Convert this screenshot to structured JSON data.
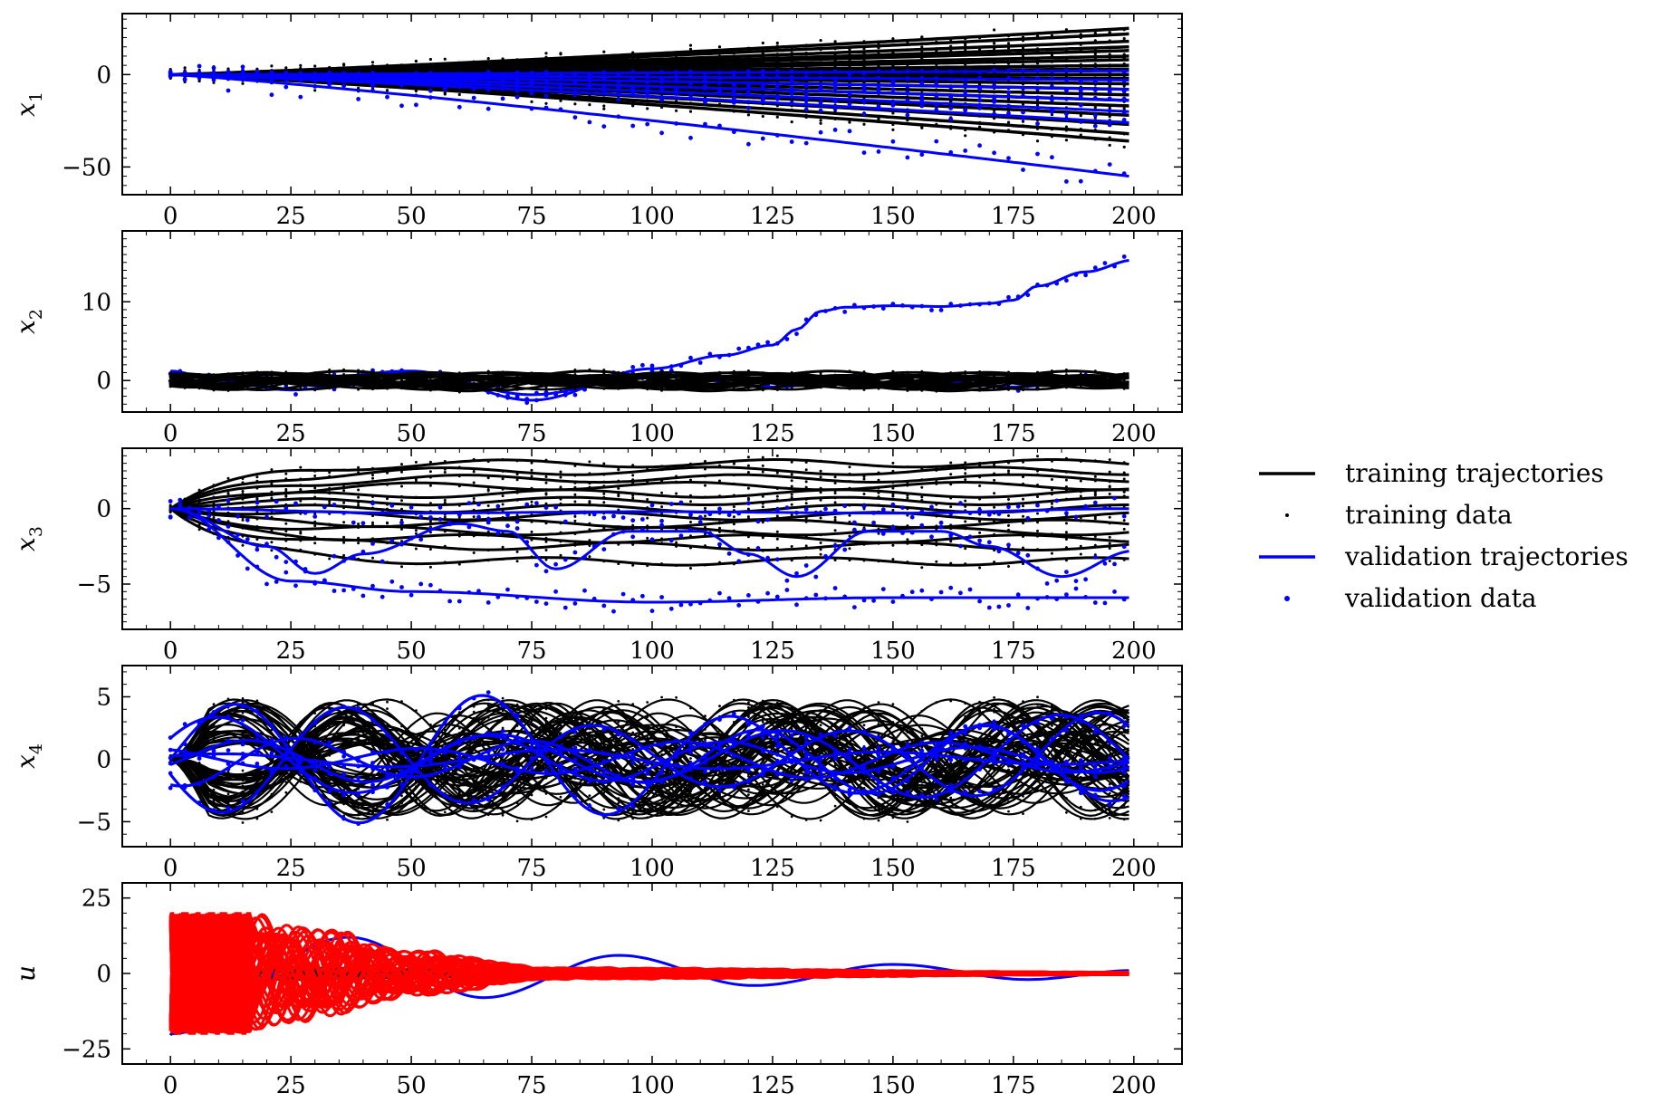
{
  "colors": {
    "training": "#000000",
    "validation": "#0000ff",
    "control": "#ff0000"
  },
  "legend": {
    "placement": "right",
    "items": [
      {
        "label": "training trajectories",
        "kind": "line",
        "color": "#000000"
      },
      {
        "label": "training data",
        "kind": "dot",
        "color": "#000000"
      },
      {
        "label": "validation trajectories",
        "kind": "line",
        "color": "#0000ff"
      },
      {
        "label": "validation data",
        "kind": "dot",
        "color": "#0000ff"
      }
    ]
  },
  "chart_data": [
    {
      "type": "line",
      "ylabel": "x",
      "ylabel_sub": "1",
      "xlim": [
        -10,
        210
      ],
      "ylim": [
        -65,
        33
      ],
      "xticks": [
        0,
        25,
        50,
        75,
        100,
        125,
        150,
        175,
        200
      ],
      "xtick_labels": [
        "0",
        "25",
        "50",
        "75",
        "100",
        "125",
        "150",
        "175",
        "200"
      ],
      "yticks": [
        0,
        -50
      ],
      "ytick_labels": [
        "0",
        "−50"
      ],
      "series": [
        {
          "group": "training",
          "x": [
            0,
            200
          ],
          "end_values": [
            25,
            22,
            18,
            15,
            13,
            10,
            8,
            5,
            3,
            0,
            -2,
            -5,
            -8,
            -11,
            -14,
            -17,
            -22,
            -27,
            -32,
            -36
          ]
        },
        {
          "group": "validation",
          "x": [
            0,
            200
          ],
          "end_values": [
            2,
            -3,
            -8,
            -14,
            -20,
            -26,
            -55
          ]
        }
      ]
    },
    {
      "type": "line",
      "ylabel": "x",
      "ylabel_sub": "2",
      "xlim": [
        -10,
        210
      ],
      "ylim": [
        -4,
        19
      ],
      "xticks": [
        0,
        25,
        50,
        75,
        100,
        125,
        150,
        175,
        200
      ],
      "xtick_labels": [
        "0",
        "25",
        "50",
        "75",
        "100",
        "125",
        "150",
        "175",
        "200"
      ],
      "yticks": [
        10,
        0
      ],
      "ytick_labels": [
        "10",
        "0"
      ],
      "series": [
        {
          "group": "validation",
          "x": [
            0,
            25,
            50,
            75,
            100,
            115,
            125,
            130,
            135,
            140,
            150,
            160,
            170,
            175,
            180,
            190,
            200
          ],
          "y": [
            0,
            0,
            1.2,
            -2.5,
            1.5,
            3.2,
            4.5,
            6.5,
            8.8,
            9.3,
            9.5,
            9.4,
            9.8,
            10.2,
            12.0,
            13.8,
            15.3
          ]
        },
        {
          "group": "validation",
          "x": [
            0,
            10,
            25,
            50,
            75,
            100,
            125,
            150,
            175,
            200
          ],
          "y": [
            1.2,
            0,
            -1.2,
            1.0,
            -1.8,
            0.8,
            -0.8,
            0.6,
            -0.8,
            0.8
          ]
        },
        {
          "group": "training",
          "x": [
            0,
            200
          ],
          "envelope": [
            -1.6,
            1.6
          ]
        }
      ]
    },
    {
      "type": "line",
      "ylabel": "x",
      "ylabel_sub": "3",
      "xlim": [
        -10,
        210
      ],
      "ylim": [
        -8,
        4
      ],
      "xticks": [
        0,
        25,
        50,
        75,
        100,
        125,
        150,
        175,
        200
      ],
      "xtick_labels": [
        "0",
        "25",
        "50",
        "75",
        "100",
        "125",
        "150",
        "175",
        "200"
      ],
      "yticks": [
        0,
        -5
      ],
      "ytick_labels": [
        "0",
        "−5"
      ],
      "series": [
        {
          "group": "training",
          "x": [
            0,
            200
          ],
          "levels": [
            3.0,
            2.5,
            2.0,
            1.5,
            1.0,
            0.5,
            0.0,
            -0.5,
            -1.0,
            -1.5,
            -2.0,
            -2.5,
            -3.5
          ]
        },
        {
          "group": "validation",
          "x": [
            0,
            25,
            50,
            100,
            150,
            200
          ],
          "y": [
            0,
            -4.8,
            -5.5,
            -6.2,
            -5.9,
            -5.9
          ]
        },
        {
          "group": "validation",
          "x": [
            0,
            20,
            30,
            40,
            60,
            70,
            80,
            95,
            110,
            120,
            130,
            145,
            160,
            170,
            185,
            200
          ],
          "y": [
            0,
            -2.5,
            -4.3,
            -3.0,
            -1.0,
            -1.5,
            -4.0,
            -1.5,
            -1.5,
            -3.0,
            -4.5,
            -1.5,
            -1.5,
            -2.5,
            -4.5,
            -2.8
          ]
        },
        {
          "group": "validation",
          "x": [
            0,
            50,
            100,
            150,
            200
          ],
          "y": [
            0,
            -0.3,
            -0.2,
            -0.3,
            0
          ]
        }
      ]
    },
    {
      "type": "line",
      "ylabel": "x",
      "ylabel_sub": "4",
      "xlim": [
        -10,
        210
      ],
      "ylim": [
        -7,
        7.5
      ],
      "xticks": [
        0,
        25,
        50,
        75,
        100,
        125,
        150,
        175,
        200
      ],
      "xtick_labels": [
        "0",
        "25",
        "50",
        "75",
        "100",
        "125",
        "150",
        "175",
        "200"
      ],
      "yticks": [
        5,
        0,
        -5
      ],
      "ytick_labels": [
        "5",
        "0",
        "−5"
      ],
      "series": [
        {
          "group": "training",
          "x": [
            0,
            200
          ],
          "envelope": [
            -5,
            5
          ],
          "oscillating": true
        },
        {
          "group": "validation",
          "x": [
            0,
            200
          ],
          "peak_amplitude": 6.3,
          "oscillating": true
        }
      ]
    },
    {
      "type": "line",
      "ylabel": "u",
      "ylabel_sub": "",
      "xlim": [
        -10,
        210
      ],
      "ylim": [
        -30,
        30
      ],
      "xticks": [
        0,
        25,
        50,
        75,
        100,
        125,
        150,
        175,
        200
      ],
      "xtick_labels": [
        "0",
        "25",
        "50",
        "75",
        "100",
        "125",
        "150",
        "175",
        "200"
      ],
      "yticks": [
        25,
        0,
        -25
      ],
      "ytick_labels": [
        "25",
        "0",
        "−25"
      ],
      "series": [
        {
          "group": "training",
          "x": [
            0,
            200
          ],
          "decaying_from": 28
        },
        {
          "group": "validation",
          "x": [
            0,
            37,
            65,
            93,
            121,
            150,
            178,
            200
          ],
          "y": [
            -20,
            12,
            -8,
            6,
            -4,
            3,
            -2,
            1
          ]
        },
        {
          "group": "control",
          "x": [
            0,
            17,
            30,
            50,
            80,
            200
          ],
          "envelope_amplitude": [
            20,
            20,
            16,
            8,
            2,
            0.5
          ]
        }
      ]
    }
  ]
}
